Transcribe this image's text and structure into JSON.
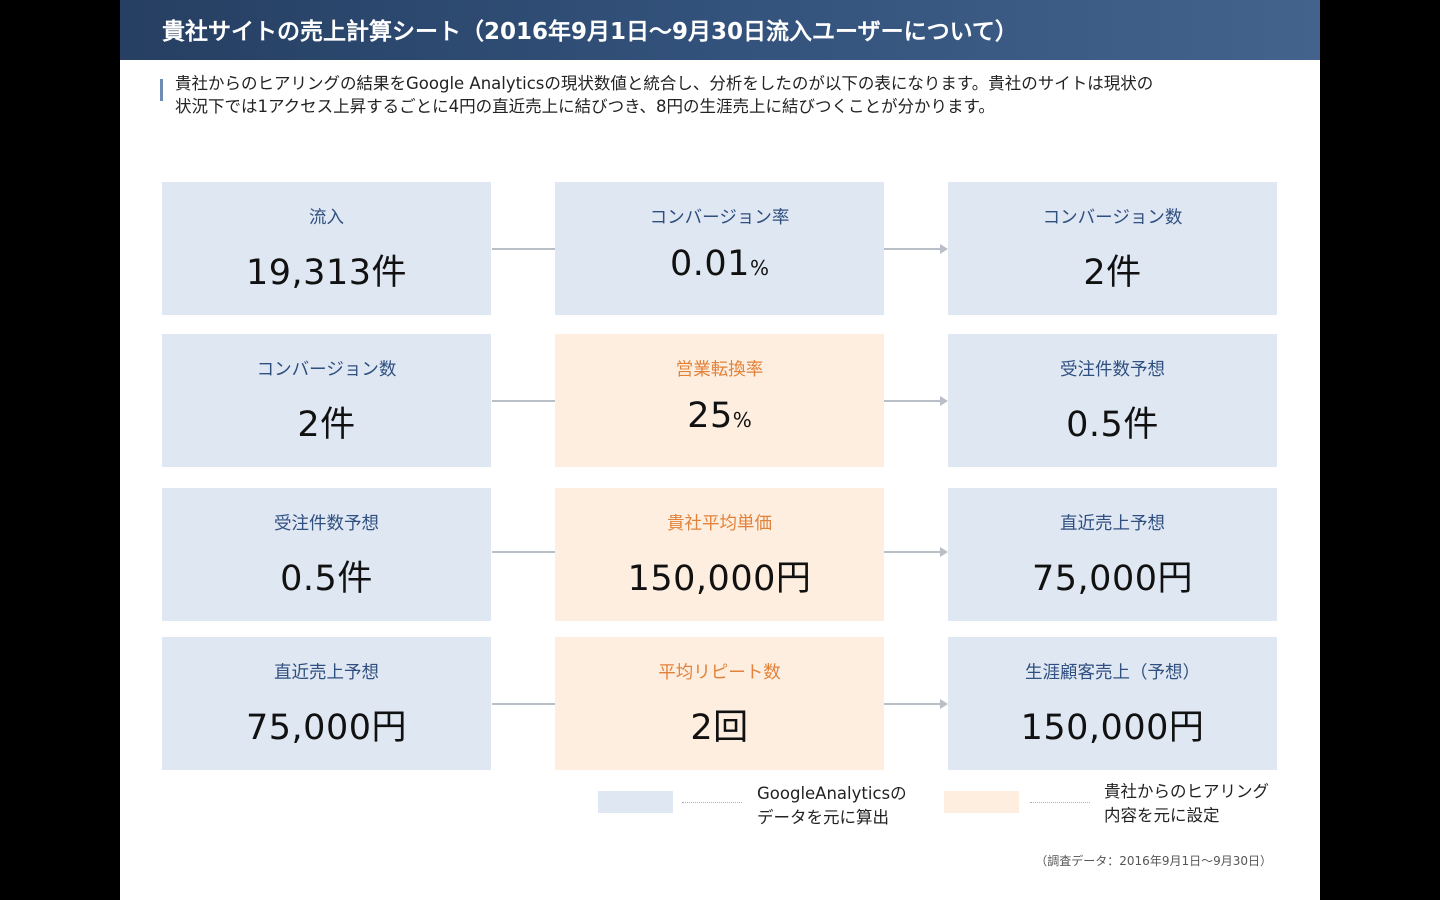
{
  "header": {
    "title": "貴社サイトの売上計算シート（2016年9月1日〜9月30日流入ユーザーについて）"
  },
  "intro": {
    "line1": "貴社からのヒアリングの結果をGoogle Analyticsの現状数値と統合し、分析をしたのが以下の表になります。貴社のサイトは現状の",
    "line2": "状況下では1アクセス上昇するごとに4円の直近売上に結びつき、8円の生涯売上に結びつくことが分かります。"
  },
  "rows": [
    {
      "left": {
        "label": "流入",
        "value": "19,313件",
        "unit": ""
      },
      "middle": {
        "label": "コンバージョン率",
        "value": "0.01",
        "unit": "%"
      },
      "right": {
        "label": "コンバージョン数",
        "value": "2件",
        "unit": ""
      }
    },
    {
      "left": {
        "label": "コンバージョン数",
        "value": "2件",
        "unit": ""
      },
      "middle": {
        "label": "営業転換率",
        "value": "25",
        "unit": "%"
      },
      "right": {
        "label": "受注件数予想",
        "value": "0.5件",
        "unit": ""
      }
    },
    {
      "left": {
        "label": "受注件数予想",
        "value": "0.5件",
        "unit": ""
      },
      "middle": {
        "label": "貴社平均単価",
        "value": "150,000円",
        "unit": ""
      },
      "right": {
        "label": "直近売上予想",
        "value": "75,000円",
        "unit": ""
      }
    },
    {
      "left": {
        "label": "直近売上予想",
        "value": "75,000円",
        "unit": ""
      },
      "middle": {
        "label": "平均リピート数",
        "value": "2回",
        "unit": ""
      },
      "right": {
        "label": "生涯顧客売上（予想）",
        "value": "150,000円",
        "unit": ""
      }
    }
  ],
  "legend": {
    "ga_line1": "GoogleAnalyticsの",
    "ga_line2": "データを元に算出",
    "hearing_line1": "貴社からのヒアリング",
    "hearing_line2": "内容を元に設定"
  },
  "source": "（調査データ：2016年9月1日〜9月30日）",
  "colors": {
    "header": "#34547e",
    "card_blue": "#dfe7f2",
    "card_peach": "#fdeedf",
    "label_blue": "#2f4f80",
    "label_orange": "#e2823a"
  }
}
